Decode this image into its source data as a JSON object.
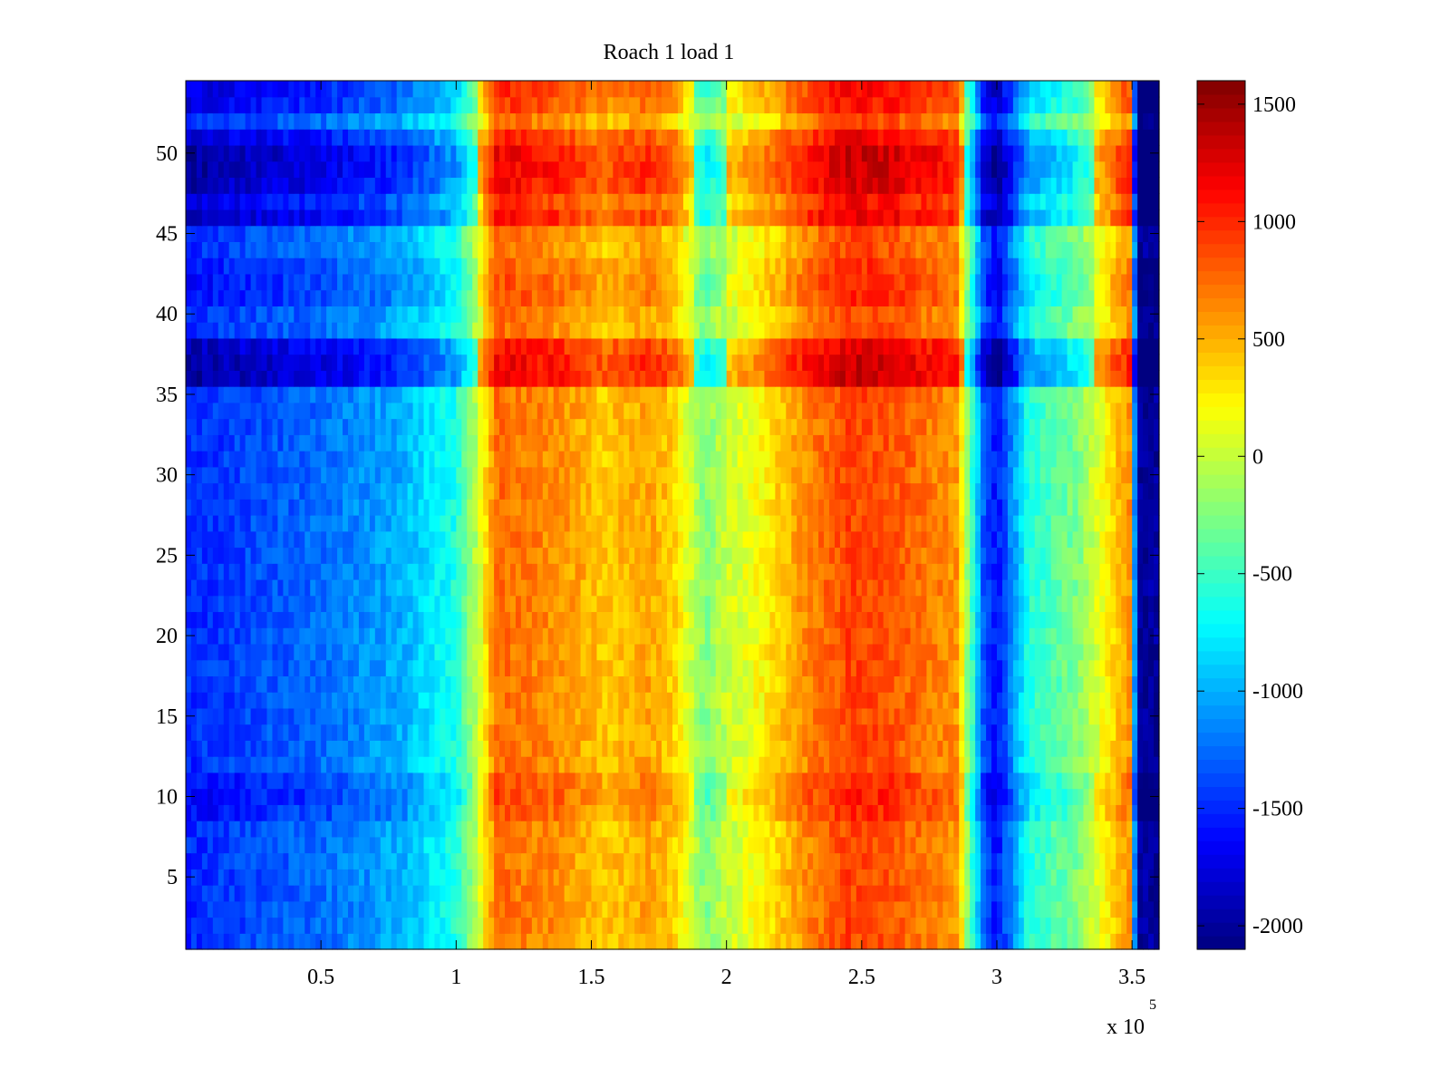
{
  "chart_data": {
    "type": "heatmap",
    "title": "Roach 1 load 1",
    "xlabel": "",
    "ylabel": "",
    "colormap": "jet",
    "x_range": [
      0,
      360000
    ],
    "y_range": [
      1,
      54
    ],
    "x_ticks": [
      50000,
      100000,
      150000,
      200000,
      250000,
      300000,
      350000
    ],
    "x_tick_labels": [
      "0.5",
      "1",
      "1.5",
      "2",
      "2.5",
      "3",
      "3.5"
    ],
    "x_multiplier_text": "x 10",
    "x_multiplier_exponent": "5",
    "y_ticks": [
      5,
      10,
      15,
      20,
      25,
      30,
      35,
      40,
      45,
      50
    ],
    "y_tick_labels": [
      "5",
      "10",
      "15",
      "20",
      "25",
      "30",
      "35",
      "40",
      "45",
      "50"
    ],
    "colorbar": {
      "range": [
        -2100,
        1600
      ],
      "ticks": [
        1500,
        1000,
        500,
        0,
        -500,
        -1000,
        -1500,
        -2000
      ],
      "tick_labels": [
        "1500",
        "1000",
        "500",
        "0",
        "-500",
        "-1000",
        "-1500",
        "-2000"
      ]
    },
    "column_profile": {
      "x": [
        0,
        20000,
        50000,
        80000,
        100000,
        108000,
        115000,
        140000,
        155000,
        170000,
        180000,
        192000,
        200000,
        212000,
        230000,
        245000,
        260000,
        285000,
        295000,
        300000,
        312000,
        330000,
        345000,
        349000,
        352000,
        360000
      ],
      "z": [
        -1500,
        -1400,
        -1250,
        -1000,
        -600,
        0,
        750,
        600,
        400,
        550,
        400,
        -250,
        0,
        200,
        650,
        900,
        850,
        600,
        -1300,
        -1600,
        -600,
        -250,
        450,
        600,
        -2000,
        -2000
      ]
    },
    "row_offsets": {
      "rows": [
        36,
        37,
        38,
        46,
        47,
        48,
        49,
        50,
        51,
        53,
        54,
        9,
        10,
        11,
        41,
        42,
        43
      ],
      "offsets": [
        550,
        550,
        450,
        450,
        300,
        500,
        550,
        550,
        350,
        250,
        300,
        150,
        200,
        150,
        150,
        150,
        100
      ]
    }
  }
}
